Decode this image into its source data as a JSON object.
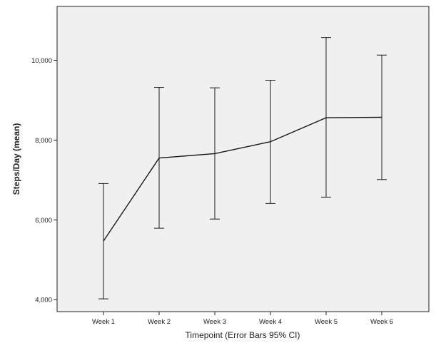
{
  "chart_data": {
    "type": "line",
    "xlabel": "Timepoint (Error Bars 95% CI)",
    "ylabel": "Steps/Day (mean)",
    "categories": [
      "Week 1",
      "Week 2",
      "Week 3",
      "Week 4",
      "Week 5",
      "Week 6"
    ],
    "series": [
      {
        "values": [
          5470,
          7550,
          7660,
          7960,
          8560,
          8570
        ],
        "ci_low": [
          4020,
          5790,
          6020,
          6410,
          6570,
          7010
        ],
        "ci_high": [
          6910,
          9320,
          9310,
          9500,
          10570,
          10130
        ]
      }
    ],
    "yticks": [
      4000,
      6000,
      8000,
      10000
    ],
    "ytick_labels": [
      "4,000",
      "6,000",
      "8,000",
      "10,000"
    ],
    "ylim": [
      3700,
      11350
    ],
    "grid": false,
    "colors": {
      "plot_background": "#f0f0f0",
      "line": "#1a1a1a",
      "error_bar": "#1a1a1a",
      "frame": "#222222"
    }
  }
}
